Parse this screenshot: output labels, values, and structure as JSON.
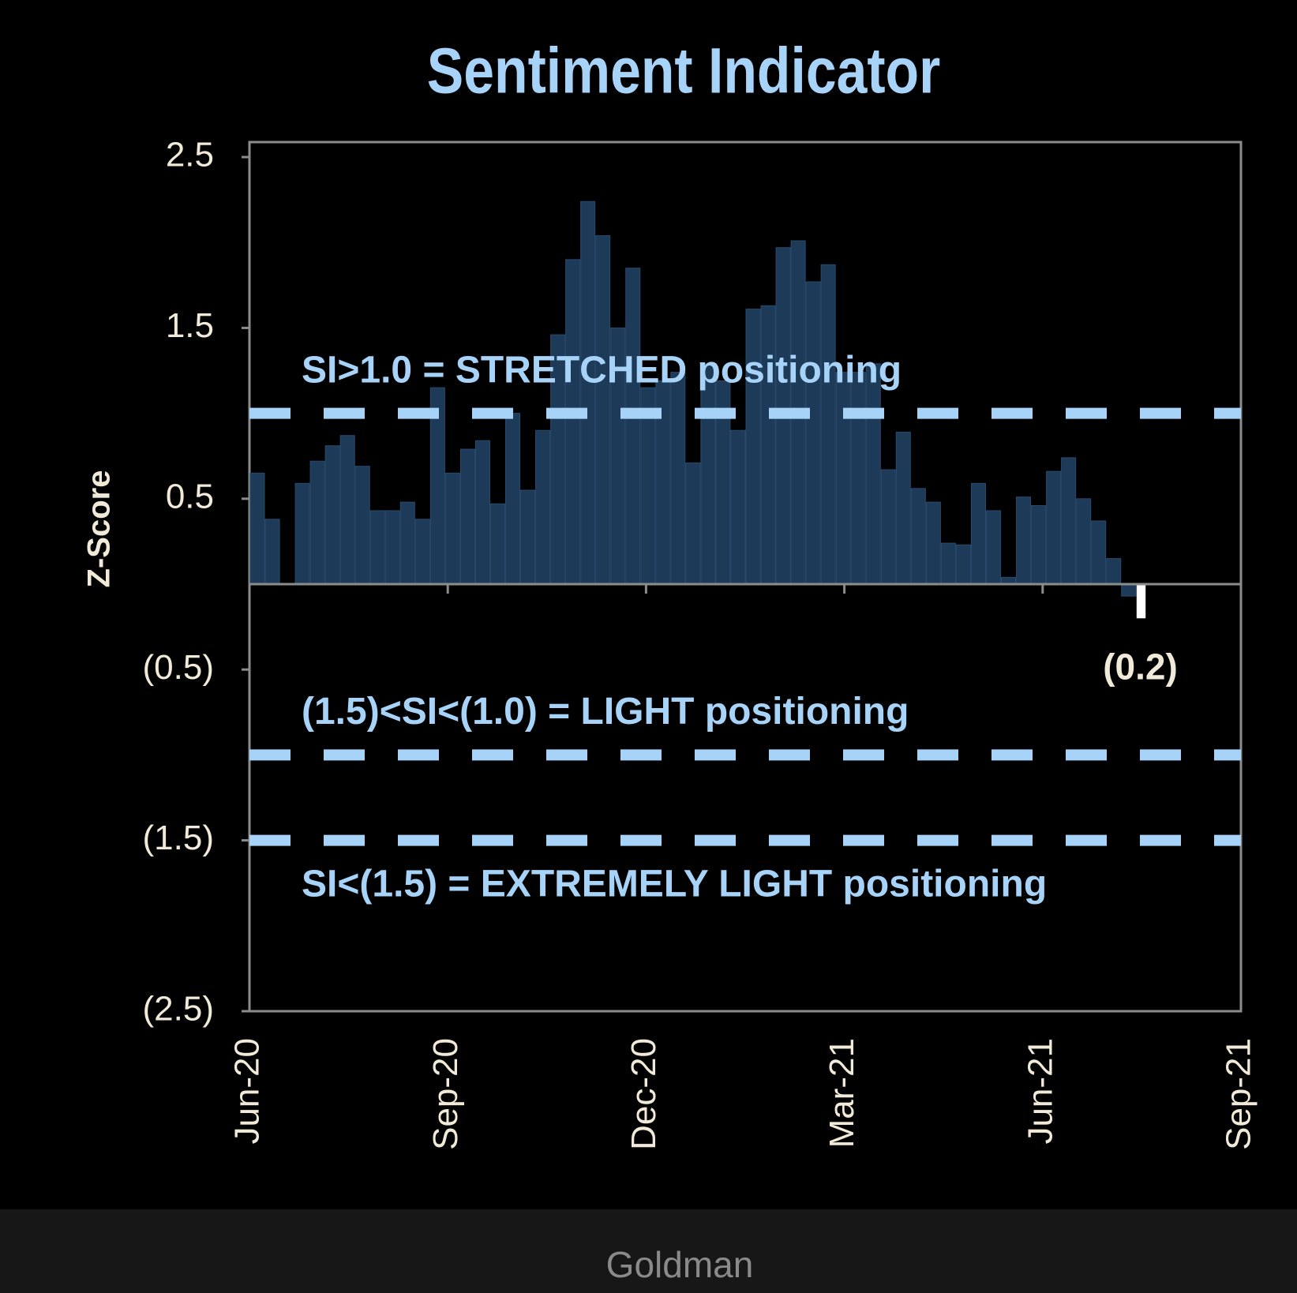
{
  "chart_data": {
    "type": "bar",
    "title": "Sentiment Indicator",
    "y_label": "Z-Score",
    "categories": [
      null,
      null,
      null,
      null,
      null,
      null,
      null,
      null,
      null,
      null,
      null,
      null,
      null,
      null,
      null,
      null,
      null,
      null,
      null,
      null,
      null,
      null,
      null,
      null,
      null,
      null,
      null,
      null,
      null,
      null,
      null,
      null,
      null,
      null,
      null,
      null,
      null,
      null,
      null,
      null,
      null,
      null,
      null,
      null,
      null,
      null,
      null,
      null,
      null,
      null,
      null,
      null,
      null,
      null,
      null,
      null,
      null,
      null,
      null,
      null
    ],
    "values": [
      0.65,
      0.38,
      0.0,
      0.59,
      0.72,
      0.81,
      0.87,
      0.69,
      0.43,
      0.43,
      0.48,
      0.38,
      1.15,
      0.65,
      0.79,
      0.84,
      0.47,
      1.0,
      0.55,
      0.9,
      1.46,
      1.9,
      2.24,
      2.04,
      1.5,
      1.85,
      1.15,
      1.19,
      1.24,
      0.71,
      1.29,
      1.19,
      0.9,
      1.61,
      1.63,
      1.97,
      2.01,
      1.77,
      1.87,
      1.24,
      1.24,
      1.29,
      0.67,
      0.89,
      0.56,
      0.48,
      0.24,
      0.23,
      0.59,
      0.43,
      0.04,
      0.51,
      0.46,
      0.66,
      0.74,
      0.5,
      0.37,
      0.15,
      -0.07,
      -0.2
    ],
    "color": "#1d3a58",
    "last_color": "#ffffff",
    "last_value_label": "(0.2)",
    "x_tick_labels": [
      "Jun-20",
      "Sep-20",
      "Dec-20",
      "Mar-21",
      "Jun-21",
      "Sep-21"
    ],
    "ylim": [
      -2.5,
      2.5
    ],
    "yticks": [
      {
        "value": -2.5,
        "label": "(2.5)"
      },
      {
        "value": -1.5,
        "label": "(1.5)"
      },
      {
        "value": -0.5,
        "label": "(0.5)"
      },
      0.5,
      1.5,
      2.5
    ],
    "grid": false,
    "reference_lines": [
      {
        "value": 1.0,
        "label": "SI>1.0 = STRETCHED positioning",
        "label_position": "above"
      },
      {
        "value": -1.0,
        "label": "(1.5)<SI<(1.0) = LIGHT positioning",
        "label_position": "above"
      },
      {
        "value": -1.5,
        "label": "SI<(1.5) = EXTREMELY LIGHT positioning",
        "label_position": "below"
      }
    ],
    "reference_color": "#a6d3f7",
    "source": "Goldman"
  }
}
